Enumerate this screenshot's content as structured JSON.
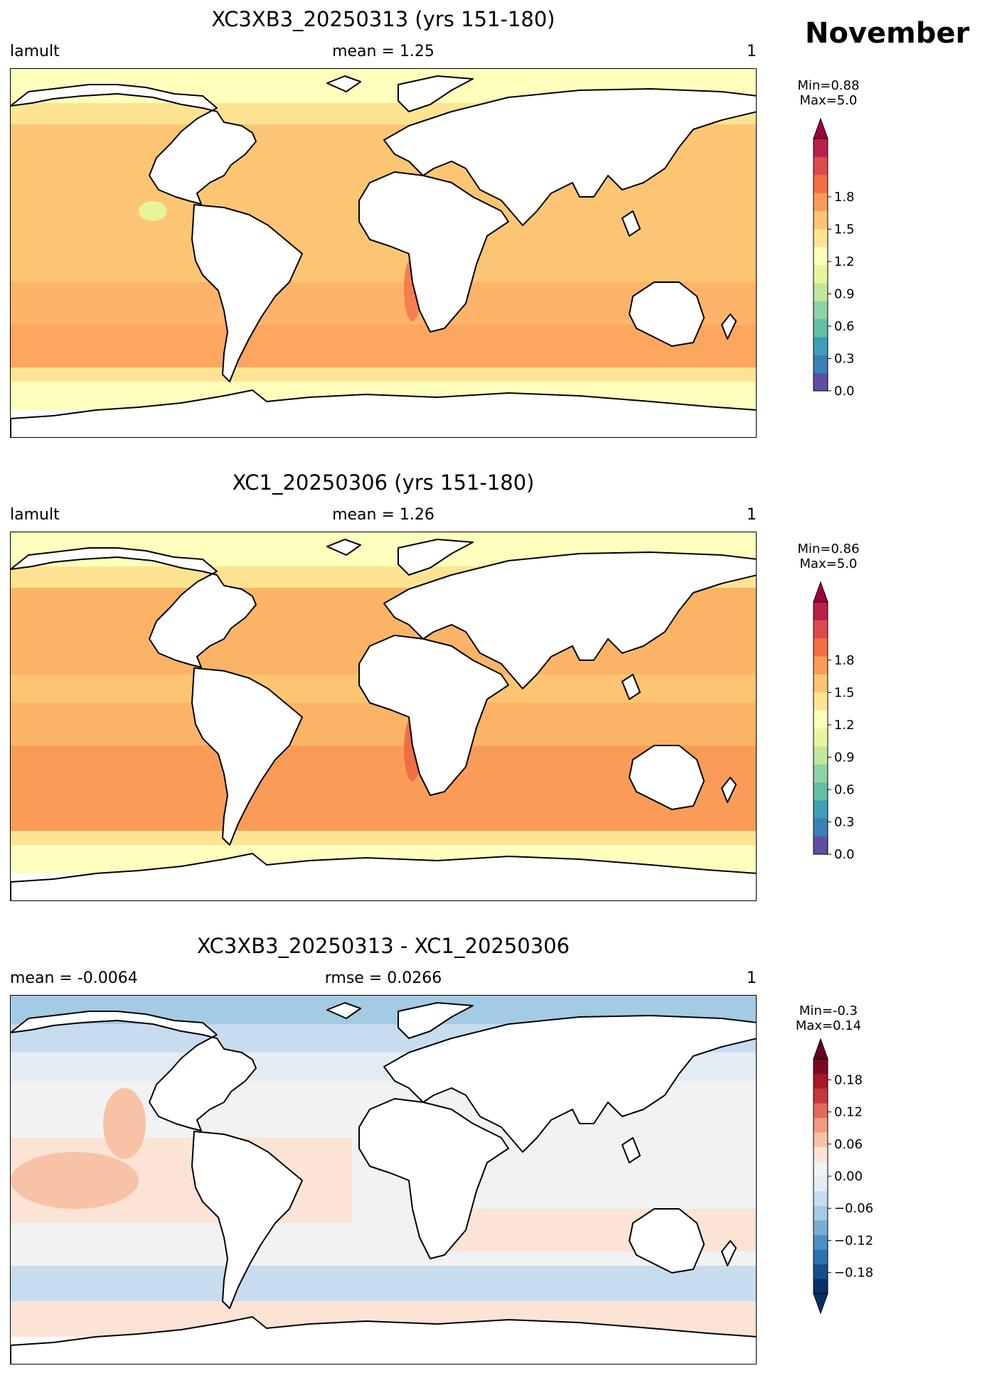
{
  "month": "November",
  "panels": [
    {
      "title": "XC3XB3_20250313 (yrs 151-180)",
      "left_label": "lamult",
      "center_label": "mean = 1.25",
      "right_label": "1",
      "colorbar": {
        "min_text": "Min=0.88",
        "max_text": "Max=5.0",
        "ticks": [
          "0.0",
          "0.3",
          "0.6",
          "0.9",
          "1.2",
          "1.5",
          "1.8"
        ],
        "colors": [
          "#5e4fa2",
          "#3b7fb8",
          "#3c9fb6",
          "#63bfa6",
          "#8fd2a4",
          "#c1e79f",
          "#e7f59a",
          "#fefebd",
          "#fee492",
          "#fdc472",
          "#fa9c58",
          "#f26d43",
          "#dd4a4c",
          "#bc2049"
        ],
        "extend_max_color": "#9e0142",
        "extend_min": false
      }
    },
    {
      "title": "XC1_20250306 (yrs 151-180)",
      "left_label": "lamult",
      "center_label": "mean = 1.26",
      "right_label": "1",
      "colorbar": {
        "min_text": "Min=0.86",
        "max_text": "Max=5.0",
        "ticks": [
          "0.0",
          "0.3",
          "0.6",
          "0.9",
          "1.2",
          "1.5",
          "1.8"
        ],
        "colors": [
          "#5e4fa2",
          "#3b7fb8",
          "#3c9fb6",
          "#63bfa6",
          "#8fd2a4",
          "#c1e79f",
          "#e7f59a",
          "#fefebd",
          "#fee492",
          "#fdc472",
          "#fa9c58",
          "#f26d43",
          "#dd4a4c",
          "#bc2049"
        ],
        "extend_max_color": "#9e0142",
        "extend_min": false
      }
    },
    {
      "title": "XC3XB3_20250313 - XC1_20250306",
      "left_label": "mean = -0.0064",
      "center_label": "rmse = 0.0266",
      "right_label": "1",
      "colorbar": {
        "min_text": "Min=-0.3",
        "max_text": "Max=0.14",
        "ticks": [
          "−0.18",
          "−0.12",
          "−0.06",
          "0.00",
          "0.06",
          "0.12",
          "0.18"
        ],
        "colors": [
          "#08306b",
          "#134f8c",
          "#2c71b0",
          "#4a91c6",
          "#74aed4",
          "#a3cbe3",
          "#c7dcee",
          "#e2edf3",
          "#f1f2f3",
          "#fbe3d5",
          "#f8c2a6",
          "#f19c7c",
          "#e1695a",
          "#c6383b",
          "#a81628",
          "#7e0823"
        ],
        "extend_max_color": "#67001f",
        "extend_min": true,
        "extend_min_color": "#053061"
      }
    }
  ]
}
